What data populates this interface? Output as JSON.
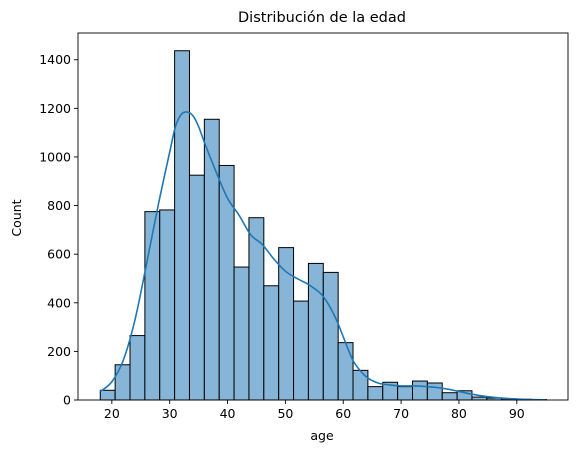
{
  "chart_data": {
    "type": "bar",
    "subtype": "histogram",
    "title": "Distribución de la edad",
    "xlabel": "age",
    "ylabel": "Count",
    "xlim": [
      14.15,
      98.85
    ],
    "ylim": [
      0,
      1510
    ],
    "xticks": [
      20,
      30,
      40,
      50,
      60,
      70,
      80,
      90
    ],
    "yticks": [
      0,
      200,
      400,
      600,
      800,
      1000,
      1200,
      1400
    ],
    "bin_start": 18,
    "bin_width": 2.57,
    "values": [
      40,
      145,
      265,
      775,
      782,
      1437,
      925,
      1155,
      965,
      547,
      750,
      470,
      627,
      407,
      562,
      525,
      236,
      122,
      55,
      73,
      55,
      78,
      70,
      30,
      38,
      12,
      8,
      5,
      3,
      2
    ],
    "kde": {
      "x": [
        18,
        20,
        22,
        24,
        26,
        28,
        30,
        31,
        32,
        33,
        34,
        35,
        36,
        38,
        40,
        42,
        44,
        46,
        48,
        50,
        52,
        54,
        56,
        57,
        58,
        59,
        60,
        61,
        62,
        64,
        66,
        68,
        70,
        72,
        74,
        76,
        78,
        80,
        82,
        84,
        86,
        88,
        90,
        92,
        95
      ],
      "y": [
        35,
        75,
        165,
        330,
        560,
        800,
        1020,
        1125,
        1175,
        1185,
        1170,
        1125,
        1060,
        940,
        830,
        760,
        680,
        640,
        580,
        530,
        500,
        475,
        440,
        410,
        370,
        320,
        260,
        200,
        150,
        95,
        70,
        62,
        58,
        58,
        56,
        52,
        45,
        35,
        25,
        17,
        11,
        7,
        4,
        2,
        1
      ]
    },
    "bar_color": "#87b5d7",
    "bar_edge_color": "#000000",
    "kde_color": "#1f77b4",
    "grid": false,
    "legend": "none"
  }
}
